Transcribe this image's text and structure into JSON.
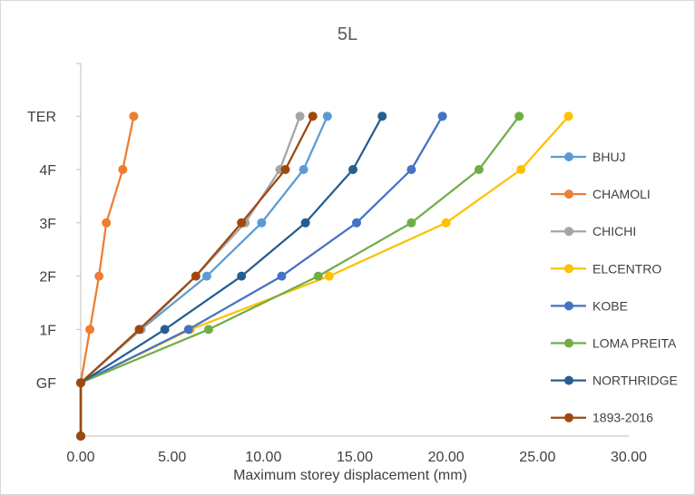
{
  "chart_data": {
    "type": "line",
    "title": "5L",
    "xlabel": "Maximum storey displacement (mm)",
    "ylabel": "",
    "xlim": [
      0,
      30
    ],
    "x_ticks": [
      "0.00",
      "5.00",
      "10.00",
      "15.00",
      "20.00",
      "25.00",
      "30.00"
    ],
    "categories": [
      "",
      "GF",
      "1F",
      "2F",
      "3F",
      "4F",
      "TER"
    ],
    "legend_position": "right",
    "series": [
      {
        "name": "BHUJ",
        "color": "#5B9BD5",
        "values": [
          0,
          0,
          3.3,
          6.9,
          9.9,
          12.2,
          13.5
        ]
      },
      {
        "name": "CHAMOLI",
        "color": "#ED7D31",
        "values": [
          0,
          0,
          0.5,
          1.0,
          1.4,
          2.3,
          2.9
        ]
      },
      {
        "name": "CHICHI",
        "color": "#A5A5A5",
        "values": [
          0,
          0,
          3.3,
          6.3,
          9.0,
          10.9,
          12.0
        ]
      },
      {
        "name": "ELCENTRO",
        "color": "#FFC000",
        "values": [
          0,
          0,
          6.0,
          13.6,
          20.0,
          24.1,
          26.7
        ]
      },
      {
        "name": "KOBE",
        "color": "#4472C4",
        "values": [
          0,
          0,
          5.9,
          11.0,
          15.1,
          18.1,
          19.8
        ]
      },
      {
        "name": "LOMA PREITA",
        "color": "#70AD47",
        "values": [
          0,
          0,
          7.0,
          13.0,
          18.1,
          21.8,
          24.0
        ]
      },
      {
        "name": "NORTHRIDGE",
        "color": "#255E91",
        "values": [
          0,
          0,
          4.6,
          8.8,
          12.3,
          14.9,
          16.5
        ]
      },
      {
        "name": "1893-2016",
        "color": "#9E480E",
        "values": [
          0,
          0,
          3.2,
          6.3,
          8.8,
          11.2,
          12.7
        ]
      }
    ]
  }
}
